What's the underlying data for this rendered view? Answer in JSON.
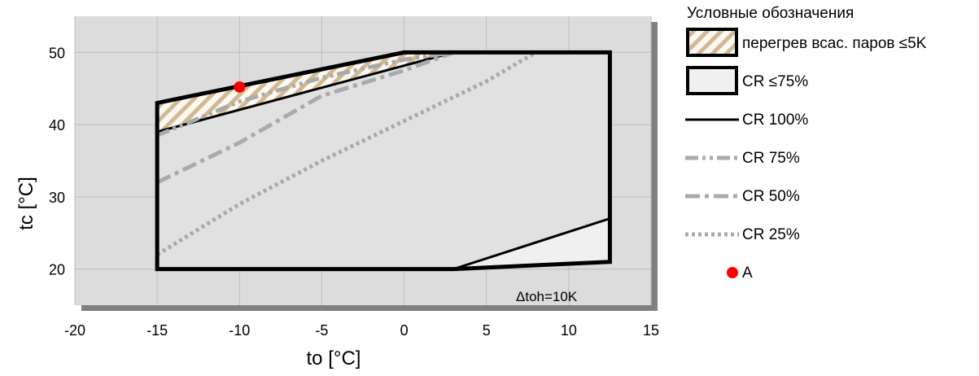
{
  "chart_data": {
    "type": "line",
    "xlabel": "to [°C]",
    "ylabel": "tc [°C]",
    "xlim": [
      -20,
      15
    ],
    "ylim": [
      15,
      55
    ],
    "xticks": [
      -20,
      -15,
      -10,
      -5,
      0,
      5,
      10,
      15
    ],
    "yticks": [
      20,
      30,
      40,
      50
    ],
    "grid": true,
    "annotation": "Δtoh=10K",
    "envelope": {
      "name": "CR 100%",
      "points": [
        [
          -15,
          20
        ],
        [
          3,
          20
        ],
        [
          12.5,
          21
        ],
        [
          12.5,
          50
        ],
        [
          0,
          50
        ],
        [
          -15,
          43
        ],
        [
          -15,
          20
        ]
      ]
    },
    "superheat_zone": {
      "name": "перегрев всас. паров ≤5K",
      "points": [
        [
          -15,
          43
        ],
        [
          0,
          50
        ],
        [
          3,
          50
        ],
        [
          -15,
          39
        ]
      ]
    },
    "cr75_zone": {
      "name": "CR ≤75%",
      "points": [
        [
          3,
          20
        ],
        [
          12.5,
          27
        ],
        [
          12.5,
          21
        ]
      ]
    },
    "series": [
      {
        "name": "CR 75%",
        "style": "dash-dot-dot",
        "x": [
          -15,
          -10,
          -5,
          0,
          3
        ],
        "y": [
          38.5,
          43.2,
          46.5,
          49,
          50
        ]
      },
      {
        "name": "CR 50%",
        "style": "dash-dot",
        "x": [
          -15,
          -10,
          -5,
          0,
          3
        ],
        "y": [
          32,
          37.5,
          44,
          47.5,
          50
        ]
      },
      {
        "name": "CR 25%",
        "style": "dotted",
        "x": [
          -15,
          -10,
          -5,
          0,
          5,
          8
        ],
        "y": [
          22,
          29,
          35,
          40.5,
          46,
          50
        ]
      }
    ],
    "point_a": {
      "name": "A",
      "x": -10,
      "y": 45.2
    }
  },
  "legend": {
    "title": "Условные обозначения",
    "items": [
      {
        "key": "superheat",
        "label": "перегрев всас. паров ≤5K"
      },
      {
        "key": "cr75zone",
        "label": "CR ≤75%"
      },
      {
        "key": "cr100",
        "label": "CR 100%"
      },
      {
        "key": "cr75",
        "label": "CR 75%"
      },
      {
        "key": "cr50",
        "label": "CR 50%"
      },
      {
        "key": "cr25",
        "label": "CR 25%"
      },
      {
        "key": "pointA",
        "label": "A"
      }
    ]
  },
  "colors": {
    "plot_bg": "#dcdcdc",
    "shadow": "#808080",
    "grid": "#bdbdbd",
    "envelope": "#000000",
    "hatch_stripe": "#d2b993",
    "zone_fill": "#f0f0f0",
    "series_gray": "#aaaaaa",
    "point": "#ff0000"
  }
}
